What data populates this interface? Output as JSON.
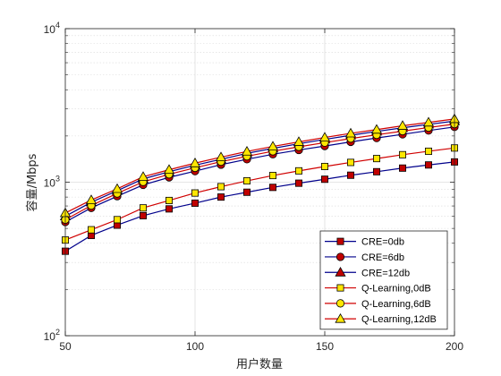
{
  "chart_data": {
    "type": "line",
    "xlabel": "用户数量",
    "ylabel": "容量/Mbps",
    "xlim": [
      50,
      200
    ],
    "ylim": [
      100,
      10000
    ],
    "yscale": "log",
    "grid": true,
    "x_ticks": [
      "50",
      "100",
      "150",
      "200"
    ],
    "y_ticks": [
      {
        "base": "10",
        "exp": "2"
      },
      {
        "base": "10",
        "exp": "3"
      },
      {
        "base": "10",
        "exp": "4"
      }
    ],
    "legend_position": "bottom-right",
    "x": [
      50,
      60,
      70,
      80,
      90,
      100,
      110,
      120,
      130,
      140,
      150,
      160,
      170,
      180,
      190,
      200
    ],
    "series": [
      {
        "name": "CRE=0db",
        "marker": "square",
        "line_color": "#00008B",
        "marker_fill": "#C00000",
        "values": [
          355,
          450,
          525,
          605,
          670,
          730,
          800,
          860,
          925,
          985,
          1045,
          1110,
          1170,
          1235,
          1295,
          1355
        ]
      },
      {
        "name": "CRE=6db",
        "marker": "circle",
        "line_color": "#00008B",
        "marker_fill": "#C00000",
        "values": [
          550,
          680,
          810,
          960,
          1075,
          1180,
          1300,
          1410,
          1520,
          1620,
          1720,
          1830,
          1940,
          2050,
          2170,
          2290
        ]
      },
      {
        "name": "CRE=12db",
        "marker": "triangle",
        "line_color": "#00008B",
        "marker_fill": "#C00000",
        "values": [
          600,
          740,
          880,
          1050,
          1170,
          1290,
          1410,
          1540,
          1660,
          1780,
          1900,
          2020,
          2140,
          2260,
          2380,
          2500
        ]
      },
      {
        "name": "Q-Learning,0dB",
        "marker": "square",
        "line_color": "#D00000",
        "marker_fill": "#FFE600",
        "values": [
          420,
          490,
          570,
          680,
          760,
          850,
          935,
          1020,
          1105,
          1185,
          1265,
          1345,
          1425,
          1510,
          1590,
          1670
        ]
      },
      {
        "name": "Q-Learning,6dB",
        "marker": "circle",
        "line_color": "#D00000",
        "marker_fill": "#FFE600",
        "values": [
          570,
          705,
          845,
          1005,
          1125,
          1240,
          1360,
          1475,
          1590,
          1700,
          1810,
          1925,
          2035,
          2150,
          2270,
          2390
        ]
      },
      {
        "name": "Q-Learning,12dB",
        "marker": "triangle",
        "line_color": "#D00000",
        "marker_fill": "#FFE600",
        "values": [
          630,
          765,
          905,
          1085,
          1205,
          1330,
          1455,
          1585,
          1710,
          1830,
          1955,
          2080,
          2200,
          2330,
          2450,
          2580
        ]
      }
    ]
  }
}
